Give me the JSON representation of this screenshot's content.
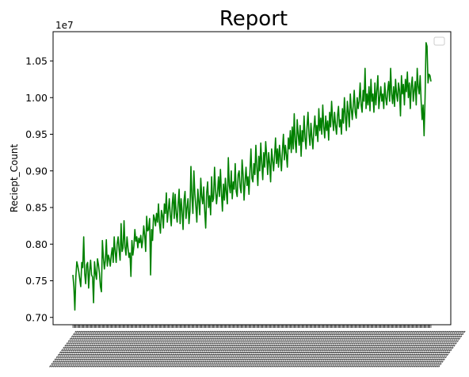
{
  "chart_data": {
    "type": "line",
    "title": "Report",
    "xlabel": "",
    "ylabel": "Reciept_Count",
    "y_offset_label": "1e7",
    "ylim": [
      6.9,
      10.9
    ],
    "yticks": [
      {
        "value": 7.0,
        "label": "0.70"
      },
      {
        "value": 7.5,
        "label": "0.75"
      },
      {
        "value": 8.0,
        "label": "0.80"
      },
      {
        "value": 8.5,
        "label": "0.85"
      },
      {
        "value": 9.0,
        "label": "0.90"
      },
      {
        "value": 9.5,
        "label": "0.95"
      },
      {
        "value": 10.0,
        "label": "1.00"
      },
      {
        "value": 10.5,
        "label": "1.05"
      }
    ],
    "x_points": 365,
    "grid": false,
    "legend": "top-right",
    "line_color": "#008000",
    "series": [
      {
        "values": [
          7.58,
          7.42,
          7.1,
          7.55,
          7.76,
          7.7,
          7.62,
          7.52,
          7.42,
          7.75,
          7.68,
          8.1,
          7.6,
          7.46,
          7.72,
          7.75,
          7.4,
          7.63,
          7.78,
          7.58,
          7.55,
          7.2,
          7.76,
          7.6,
          7.52,
          7.8,
          7.72,
          7.6,
          7.42,
          7.35,
          8.05,
          7.82,
          7.66,
          7.78,
          8.06,
          7.7,
          7.85,
          7.8,
          7.7,
          7.85,
          7.95,
          7.75,
          8.1,
          7.9,
          7.75,
          8.0,
          8.1,
          7.92,
          7.78,
          8.28,
          7.9,
          7.95,
          8.32,
          7.96,
          7.85,
          8.1,
          7.95,
          7.82,
          7.88,
          7.56,
          8.05,
          7.85,
          7.97,
          8.2,
          8.04,
          8.1,
          7.95,
          8.08,
          8.02,
          8.12,
          7.95,
          8.05,
          8.25,
          8.12,
          7.9,
          8.38,
          8.18,
          8.2,
          8.35,
          7.58,
          8.2,
          8.05,
          8.4,
          8.35,
          8.25,
          8.42,
          8.3,
          8.55,
          8.28,
          8.15,
          8.46,
          8.4,
          8.22,
          8.55,
          8.42,
          8.7,
          8.3,
          8.45,
          8.62,
          8.4,
          8.25,
          8.55,
          8.7,
          8.35,
          8.68,
          8.42,
          8.3,
          8.55,
          8.75,
          8.28,
          8.62,
          8.45,
          8.2,
          8.6,
          8.72,
          8.35,
          8.5,
          8.62,
          8.28,
          8.45,
          9.06,
          8.65,
          8.42,
          9.0,
          8.68,
          8.52,
          8.3,
          8.75,
          8.58,
          8.4,
          8.9,
          8.65,
          8.55,
          8.78,
          8.45,
          8.22,
          8.7,
          8.85,
          8.5,
          8.66,
          8.4,
          8.92,
          8.58,
          8.62,
          9.05,
          8.75,
          8.55,
          8.7,
          8.92,
          8.65,
          9.02,
          8.7,
          8.45,
          8.82,
          8.6,
          8.9,
          8.7,
          8.55,
          9.18,
          8.8,
          8.7,
          9.0,
          8.62,
          8.85,
          8.75,
          9.1,
          8.72,
          8.65,
          8.95,
          9.0,
          8.78,
          8.7,
          9.15,
          8.95,
          8.6,
          8.85,
          9.05,
          8.8,
          8.92,
          8.68,
          9.0,
          9.3,
          8.9,
          8.85,
          9.1,
          8.95,
          9.35,
          9.05,
          8.8,
          9.2,
          9.0,
          9.38,
          9.1,
          8.88,
          9.25,
          9.05,
          9.4,
          9.2,
          8.95,
          9.25,
          9.1,
          8.85,
          9.3,
          9.15,
          9.0,
          9.2,
          9.45,
          9.1,
          9.3,
          9.05,
          9.35,
          9.18,
          9.0,
          9.28,
          9.5,
          9.15,
          9.35,
          9.22,
          9.05,
          9.45,
          9.3,
          9.55,
          9.25,
          9.6,
          9.3,
          9.78,
          9.4,
          9.25,
          9.7,
          9.5,
          9.35,
          9.62,
          9.2,
          9.55,
          9.4,
          9.75,
          9.45,
          9.3,
          9.6,
          9.8,
          9.5,
          9.35,
          9.65,
          9.45,
          9.3,
          9.58,
          9.75,
          9.48,
          9.62,
          9.4,
          9.85,
          9.55,
          9.72,
          9.5,
          9.9,
          9.6,
          9.45,
          9.75,
          9.55,
          9.68,
          9.42,
          9.8,
          9.6,
          9.95,
          9.7,
          9.55,
          9.8,
          9.62,
          9.5,
          9.75,
          9.88,
          9.6,
          9.7,
          9.5,
          9.85,
          9.65,
          10.0,
          9.75,
          9.55,
          9.95,
          9.8,
          9.6,
          10.05,
          9.85,
          9.7,
          9.9,
          10.1,
          9.8,
          9.72,
          10.0,
          9.85,
          9.95,
          10.2,
          9.9,
          9.8,
          10.1,
          9.95,
          10.4,
          9.85,
          10.05,
          9.9,
          10.15,
          9.82,
          10.25,
          9.95,
          10.05,
          9.8,
          10.2,
          9.9,
          10.1,
          10.3,
          9.85,
          10.0,
          10.15,
          9.95,
          10.05,
          9.85,
          10.2,
          10.0,
          9.9,
          10.1,
          10.22,
          9.95,
          10.4,
          10.05,
          9.92,
          10.15,
          9.88,
          10.25,
          10.05,
          9.95,
          10.2,
          10.1,
          9.75,
          10.3,
          10.05,
          10.18,
          9.9,
          10.25,
          10.08,
          10.35,
          10.0,
          10.2,
          9.85,
          10.15,
          10.28,
          9.95,
          10.1,
          10.22,
          9.9,
          10.4,
          10.15,
          10.05,
          10.3,
          9.95,
          9.7,
          9.9,
          9.48,
          10.0,
          10.75,
          10.7,
          10.2,
          10.32,
          10.3,
          10.22
        ]
      }
    ]
  }
}
